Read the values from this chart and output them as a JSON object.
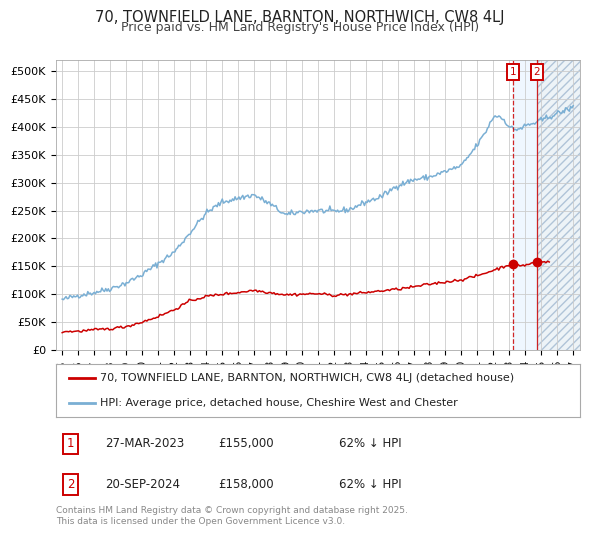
{
  "title": "70, TOWNFIELD LANE, BARNTON, NORTHWICH, CW8 4LJ",
  "subtitle": "Price paid vs. HM Land Registry's House Price Index (HPI)",
  "ylim": [
    0,
    520000
  ],
  "yticks": [
    0,
    50000,
    100000,
    150000,
    200000,
    250000,
    300000,
    350000,
    400000,
    450000,
    500000
  ],
  "ytick_labels": [
    "£0",
    "£50K",
    "£100K",
    "£150K",
    "£200K",
    "£250K",
    "£300K",
    "£350K",
    "£400K",
    "£450K",
    "£500K"
  ],
  "xlim_start": 1994.6,
  "xlim_end": 2027.4,
  "hpi_color": "#7aafd4",
  "price_color": "#cc0000",
  "marker1_date": 2023.23,
  "marker2_date": 2024.72,
  "marker1_price": 155000,
  "marker2_price": 158000,
  "legend1_label": "70, TOWNFIELD LANE, BARNTON, NORTHWICH, CW8 4LJ (detached house)",
  "legend2_label": "HPI: Average price, detached house, Cheshire West and Chester",
  "table_row1": [
    "1",
    "27-MAR-2023",
    "£155,000",
    "62% ↓ HPI"
  ],
  "table_row2": [
    "2",
    "20-SEP-2024",
    "£158,000",
    "62% ↓ HPI"
  ],
  "footer": "Contains HM Land Registry data © Crown copyright and database right 2025.\nThis data is licensed under the Open Government Licence v3.0.",
  "bg_color": "#ffffff",
  "grid_color": "#cccccc",
  "title_fontsize": 10.5,
  "subtitle_fontsize": 9,
  "tick_fontsize": 8,
  "legend_fontsize": 8,
  "table_fontsize": 8.5,
  "footer_fontsize": 6.5
}
